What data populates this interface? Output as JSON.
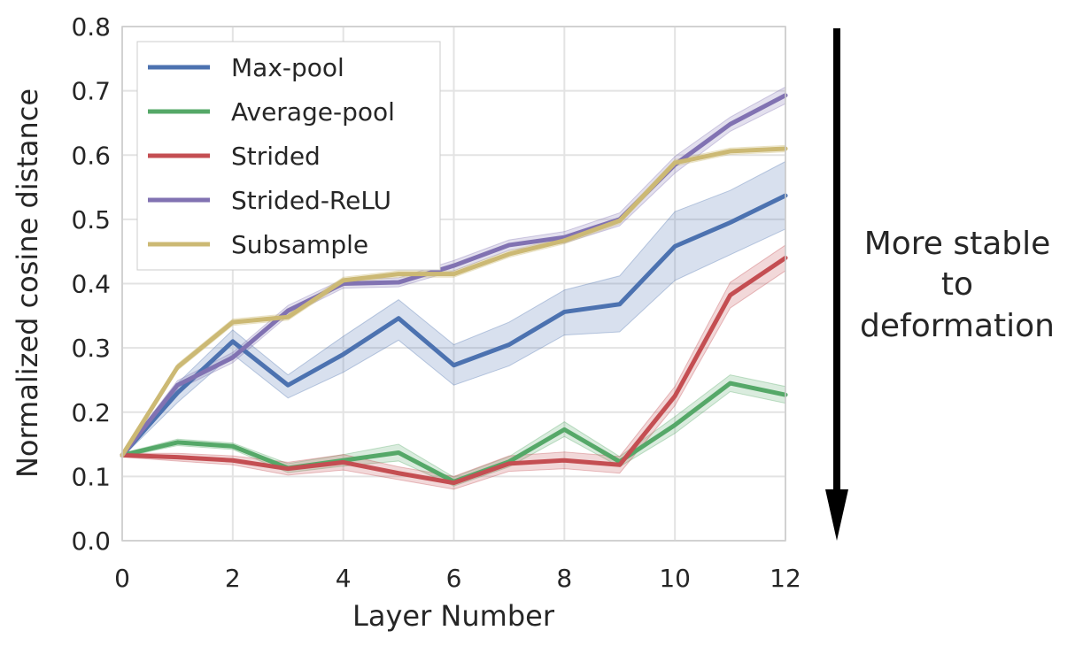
{
  "chart_data": {
    "type": "line",
    "title": "",
    "xlabel": "Layer Number",
    "ylabel": "Normalized cosine distance",
    "xlim": [
      0,
      12
    ],
    "ylim": [
      0.0,
      0.8
    ],
    "xticks": [
      "0",
      "2",
      "4",
      "6",
      "8",
      "10",
      "12"
    ],
    "yticks": [
      "0.0",
      "0.1",
      "0.2",
      "0.3",
      "0.4",
      "0.5",
      "0.6",
      "0.7",
      "0.8"
    ],
    "grid": true,
    "legend_position": "top-left",
    "x": [
      0,
      1,
      2,
      3,
      4,
      5,
      6,
      7,
      8,
      9,
      10,
      11,
      12
    ],
    "series": [
      {
        "name": "Max-pool",
        "color": "#4c72b0",
        "values": [
          0.133,
          0.23,
          0.31,
          0.242,
          0.29,
          0.346,
          0.273,
          0.305,
          0.356,
          0.368,
          0.458,
          0.495,
          0.537
        ],
        "lower": [
          0.13,
          0.215,
          0.29,
          0.222,
          0.262,
          0.312,
          0.242,
          0.272,
          0.32,
          0.325,
          0.405,
          0.445,
          0.485
        ],
        "upper": [
          0.136,
          0.245,
          0.328,
          0.258,
          0.318,
          0.375,
          0.305,
          0.34,
          0.39,
          0.412,
          0.512,
          0.545,
          0.59
        ]
      },
      {
        "name": "Average-pool",
        "color": "#55a868",
        "values": [
          0.133,
          0.153,
          0.147,
          0.113,
          0.125,
          0.137,
          0.092,
          0.123,
          0.173,
          0.123,
          0.18,
          0.245,
          0.227
        ],
        "lower": [
          0.13,
          0.148,
          0.142,
          0.106,
          0.116,
          0.124,
          0.085,
          0.115,
          0.162,
          0.115,
          0.167,
          0.232,
          0.214
        ],
        "upper": [
          0.136,
          0.158,
          0.152,
          0.12,
          0.134,
          0.15,
          0.099,
          0.131,
          0.185,
          0.131,
          0.193,
          0.258,
          0.24
        ]
      },
      {
        "name": "Strided",
        "color": "#c44e52",
        "values": [
          0.133,
          0.13,
          0.125,
          0.112,
          0.122,
          0.105,
          0.09,
          0.12,
          0.125,
          0.118,
          0.225,
          0.382,
          0.44
        ],
        "lower": [
          0.13,
          0.124,
          0.118,
          0.102,
          0.11,
          0.095,
          0.08,
          0.108,
          0.112,
          0.105,
          0.21,
          0.362,
          0.42
        ],
        "upper": [
          0.136,
          0.136,
          0.132,
          0.122,
          0.134,
          0.115,
          0.1,
          0.132,
          0.138,
          0.131,
          0.24,
          0.402,
          0.46
        ]
      },
      {
        "name": "Strided-ReLU",
        "color": "#8172b2",
        "values": [
          0.133,
          0.242,
          0.285,
          0.358,
          0.4,
          0.402,
          0.428,
          0.46,
          0.472,
          0.5,
          0.585,
          0.648,
          0.693
        ],
        "lower": [
          0.13,
          0.235,
          0.277,
          0.35,
          0.393,
          0.395,
          0.42,
          0.452,
          0.463,
          0.49,
          0.572,
          0.637,
          0.68
        ],
        "upper": [
          0.136,
          0.249,
          0.293,
          0.366,
          0.407,
          0.409,
          0.436,
          0.468,
          0.481,
          0.51,
          0.598,
          0.659,
          0.706
        ]
      },
      {
        "name": "Subsample",
        "color": "#ccb974",
        "values": [
          0.133,
          0.27,
          0.34,
          0.348,
          0.405,
          0.415,
          0.415,
          0.446,
          0.467,
          0.498,
          0.588,
          0.606,
          0.61
        ],
        "lower": [
          0.13,
          0.265,
          0.335,
          0.343,
          0.4,
          0.41,
          0.41,
          0.441,
          0.462,
          0.493,
          0.583,
          0.601,
          0.605
        ],
        "upper": [
          0.136,
          0.275,
          0.345,
          0.353,
          0.41,
          0.42,
          0.42,
          0.451,
          0.472,
          0.503,
          0.593,
          0.611,
          0.615
        ]
      }
    ]
  },
  "annotation": {
    "lines": [
      "More stable",
      "to",
      "deformation"
    ],
    "arrow_color": "#000000"
  }
}
